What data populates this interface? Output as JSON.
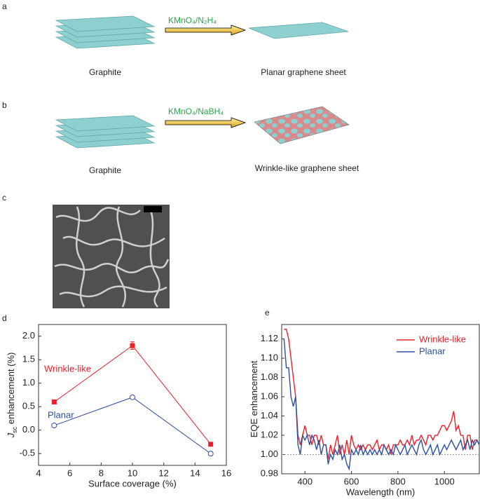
{
  "panel_a": {
    "letter": "a",
    "left_label": "Graphite",
    "reagent": "KMnO₄/N₂H₄",
    "right_label": "Planar graphene sheet"
  },
  "panel_b": {
    "letter": "b",
    "left_label": "Graphite",
    "reagent": "KMnO₄/NaBH₄",
    "right_label": "Wrinkle-like graphene sheet"
  },
  "panel_c": {
    "letter": "c"
  },
  "chart_data": [
    {
      "type": "line",
      "letter": "d",
      "xlabel": "Surface coverage (%)",
      "ylabel": [
        "J",
        "sc",
        " enhancement (%)"
      ],
      "x": [
        5,
        10,
        15
      ],
      "xlim": [
        4,
        16
      ],
      "xticks": [
        4,
        6,
        8,
        10,
        12,
        14,
        16
      ],
      "ylim": [
        -0.75,
        2.25
      ],
      "yticks": [
        -0.5,
        {
          "value": 0,
          "label": "0.0"
        },
        0.5,
        {
          "value": 1,
          "label": "1.0"
        },
        1.5,
        {
          "value": 2,
          "label": "2.0"
        }
      ],
      "series": [
        {
          "name": "Wrinkle-like",
          "color": "#e8202a",
          "marker": "square",
          "values": [
            0.6,
            1.8,
            -0.3
          ],
          "errors": [
            null,
            0.08,
            null
          ]
        },
        {
          "name": "Planar",
          "color": "#2b4fa3",
          "marker": "open-circle",
          "values": [
            0.1,
            0.7,
            -0.5
          ]
        }
      ]
    },
    {
      "type": "line",
      "letter": "e",
      "xlabel": "Wavelength (nm)",
      "ylabel": [
        "EQE enhancement"
      ],
      "legend": "upper right",
      "reference_line": 1,
      "x": [
        310,
        320,
        330,
        340,
        350,
        360,
        370,
        380,
        390,
        400,
        410,
        420,
        430,
        440,
        450,
        460,
        470,
        480,
        490,
        500,
        510,
        520,
        530,
        540,
        550,
        560,
        570,
        580,
        590,
        600,
        610,
        620,
        630,
        640,
        650,
        660,
        670,
        680,
        690,
        700,
        710,
        720,
        730,
        740,
        750,
        760,
        770,
        780,
        790,
        800,
        810,
        820,
        830,
        840,
        850,
        860,
        870,
        880,
        890,
        900,
        910,
        920,
        930,
        940,
        950,
        960,
        970,
        980,
        990,
        1000,
        1010,
        1020,
        1030,
        1040,
        1050,
        1060,
        1070,
        1080,
        1090,
        1100,
        1110,
        1120,
        1130,
        1140,
        1150
      ],
      "xlim": [
        300,
        1150
      ],
      "xticks": [
        400,
        600,
        800,
        1000
      ],
      "ylim": [
        0.98,
        1.135
      ],
      "yticks": [
        0.98,
        {
          "value": 1,
          "label": "1.00"
        },
        1.02,
        1.04,
        1.06,
        1.08,
        {
          "value": 1.1,
          "label": "1.10"
        },
        1.12
      ],
      "series": [
        {
          "name": "Wrinkle-like",
          "color": "#e8202a",
          "values": [
            1.13,
            1.13,
            1.12,
            1.1,
            1.08,
            1.06,
            1.02,
            1.01,
            1.02,
            1.03,
            1.02,
            1.02,
            1.01,
            1.02,
            1.02,
            1.01,
            1.02,
            1.01,
            1.01,
            0.995,
            1.01,
            1.0,
            1.01,
            1.02,
            1.0,
            1.01,
            1.0,
            1.015,
            1.0,
            1.02,
            1.01,
            1.005,
            1.01,
            1.005,
            1.01,
            1.005,
            1.01,
            1.01,
            1.005,
            1.01,
            1.015,
            1.005,
            1.01,
            1.01,
            1.005,
            1.01,
            1.0,
            1.01,
            1.01,
            1.01,
            1.015,
            1.01,
            1.01,
            1.015,
            1.01,
            1.02,
            1.01,
            1.015,
            1.015,
            1.02,
            1.015,
            1.01,
            1.02,
            1.02,
            1.015,
            1.02,
            1.02,
            1.025,
            1.03,
            1.03,
            1.025,
            1.03,
            1.035,
            1.045,
            1.025,
            1.03,
            1.02,
            1.02,
            1.005,
            1.02,
            1.02,
            1.005,
            1.015,
            1.015,
            1.01
          ]
        },
        {
          "name": "Planar",
          "color": "#2b4fa3",
          "values": [
            1.12,
            1.09,
            1.09,
            1.06,
            1.05,
            1.06,
            1.01,
            1.0,
            1.02,
            1.015,
            1.02,
            1.01,
            1.02,
            1.015,
            1.005,
            1.015,
            1.0,
            1.01,
            1.01,
            0.99,
            1.0,
            0.995,
            1.005,
            1.0,
            1.01,
            0.995,
            1.0,
            0.99,
            0.985,
            1.005,
            1.0,
            1.005,
            1.0,
            1.01,
            1.0,
            1.005,
            1.0,
            1.005,
            1.0,
            1.005,
            1.0,
            1.005,
            1.0,
            1.01,
            1.005,
            1.0,
            1.005,
            1.0,
            1.01,
            1.005,
            1.0,
            1.005,
            1.01,
            1.0,
            1.005,
            1.01,
            1.005,
            1.0,
            1.01,
            1.015,
            1.005,
            1.0,
            1.005,
            1.01,
            1.0,
            1.005,
            1.01,
            1.0,
            1.005,
            1.01,
            1.005,
            1.01,
            1.015,
            1.01,
            1.005,
            1.01,
            1.015,
            1.005,
            1.01,
            1.015,
            1.005,
            1.015,
            1.01,
            1.015,
            1.01
          ]
        }
      ]
    }
  ]
}
